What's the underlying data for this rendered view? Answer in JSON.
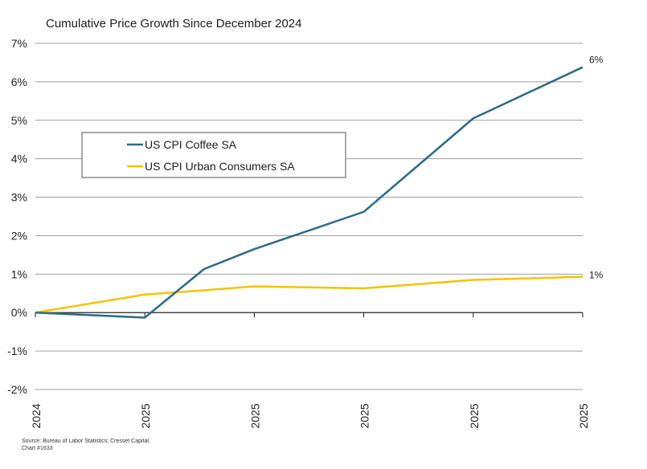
{
  "chart_data": {
    "type": "line",
    "title": "Cumulative Price Growth Since December 2024",
    "xlabel": "",
    "ylabel": "",
    "categories": [
      "2024",
      "2025",
      "2025",
      "2025",
      "2025",
      "2025"
    ],
    "ylim": [
      -2,
      7
    ],
    "yticks": [
      7,
      6,
      5,
      4,
      3,
      2,
      1,
      0,
      -1,
      -2
    ],
    "ytick_labels": [
      "7%",
      "6%",
      "5%",
      "4%",
      "3%",
      "2%",
      "1%",
      "0%",
      "-1%",
      "-2%"
    ],
    "grid": true,
    "legend_position": "upper-left",
    "colors": {
      "coffee": "#2e6a8c",
      "urban": "#f5c400",
      "grid": "#a0a0a0",
      "zero": "#222222"
    },
    "series": [
      {
        "name": "US CPI Coffee SA",
        "x": [
          0,
          1,
          1.54,
          2,
          3,
          4,
          5
        ],
        "values": [
          0,
          -0.13,
          1.13,
          1.65,
          2.62,
          5.05,
          6.38
        ],
        "end_label": "6%"
      },
      {
        "name": "US CPI Urban Consumers SA",
        "x": [
          0,
          1,
          1.54,
          2,
          3,
          4,
          5
        ],
        "values": [
          0,
          0.47,
          0.58,
          0.68,
          0.63,
          0.85,
          0.93
        ],
        "end_label": "1%"
      }
    ]
  },
  "source": {
    "line1": "Source: Bureau of Labor Statistics; Cresset Capital.",
    "line2": "Chart #1633"
  }
}
